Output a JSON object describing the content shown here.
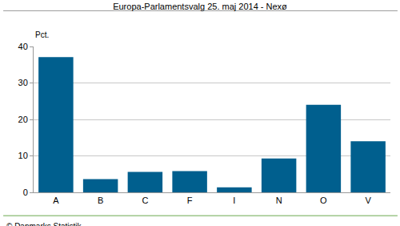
{
  "chart_data": {
    "type": "bar",
    "title": "Europa-Parlamentsvalg 25. maj 2014 - Nexø",
    "y_label": "Pct.",
    "source": "© Danmarks Statistik",
    "categories": [
      "A",
      "B",
      "C",
      "F",
      "I",
      "N",
      "O",
      "V"
    ],
    "values": [
      37.1,
      3.6,
      5.6,
      5.8,
      1.4,
      9.3,
      24.0,
      14.0
    ],
    "color": "#005f8e",
    "ylim": [
      0,
      40
    ],
    "yticks": [
      0,
      10,
      20,
      30,
      40
    ],
    "grid": true
  }
}
